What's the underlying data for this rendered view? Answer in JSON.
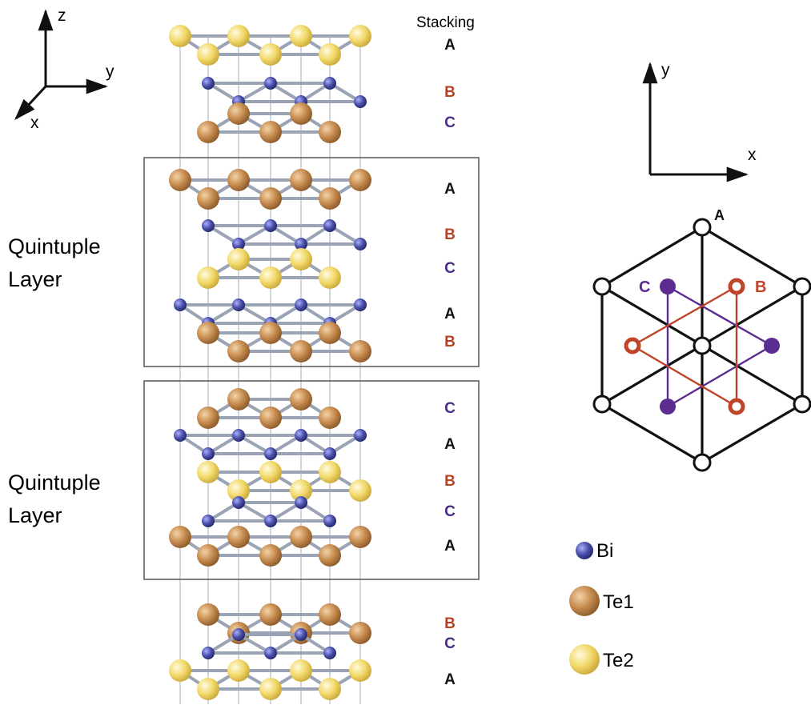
{
  "stacking_header": "Stacking",
  "left_axes": {
    "z": "z",
    "y": "y",
    "x": "x"
  },
  "right_axes": {
    "y": "y",
    "x": "x"
  },
  "qls": [
    {
      "label_line1": "Quintuple",
      "label_line2": "Layer"
    },
    {
      "label_line1": "Quintuple",
      "label_line2": "Layer"
    }
  ],
  "stacking": [
    {
      "layer": "Te2",
      "letter": "A",
      "color": "#111111"
    },
    {
      "layer": "Bi",
      "letter": "B",
      "color": "#b5432a"
    },
    {
      "layer": "Te1",
      "letter": "C",
      "color": "#4b2d86"
    },
    {
      "layer": "Te1",
      "letter": "A",
      "color": "#111111"
    },
    {
      "layer": "Bi",
      "letter": "B",
      "color": "#b5432a"
    },
    {
      "layer": "Te2",
      "letter": "C",
      "color": "#4b2d86"
    },
    {
      "layer": "Bi",
      "letter": "A",
      "color": "#111111"
    },
    {
      "layer": "Te1",
      "letter": "B",
      "color": "#b5432a"
    },
    {
      "layer": "Te1",
      "letter": "C",
      "color": "#4b2d86"
    },
    {
      "layer": "Bi",
      "letter": "A",
      "color": "#111111"
    },
    {
      "layer": "Te2",
      "letter": "B",
      "color": "#b5432a"
    },
    {
      "layer": "Bi",
      "letter": "C",
      "color": "#4b2d86"
    },
    {
      "layer": "Te1",
      "letter": "A",
      "color": "#111111"
    },
    {
      "layer": "Te1",
      "letter": "B",
      "color": "#b5432a"
    },
    {
      "layer": "Bi",
      "letter": "C",
      "color": "#4b2d86"
    },
    {
      "layer": "Te2",
      "letter": "A",
      "color": "#111111"
    }
  ],
  "hex_labels": {
    "a": "A",
    "b": "B",
    "c": "C"
  },
  "legend": [
    {
      "symbol": "Bi",
      "label": "Bi",
      "color": "#4a4fa8"
    },
    {
      "symbol": "Te1",
      "label": "Te1",
      "color": "#c58a4e"
    },
    {
      "symbol": "Te2",
      "label": "Te2",
      "color": "#f2d96a"
    }
  ],
  "colors": {
    "A": "#111111",
    "B": "#b5432a",
    "C": "#4b2d86",
    "bond": "#9aa4b5",
    "guide": "#b9c0cc"
  }
}
